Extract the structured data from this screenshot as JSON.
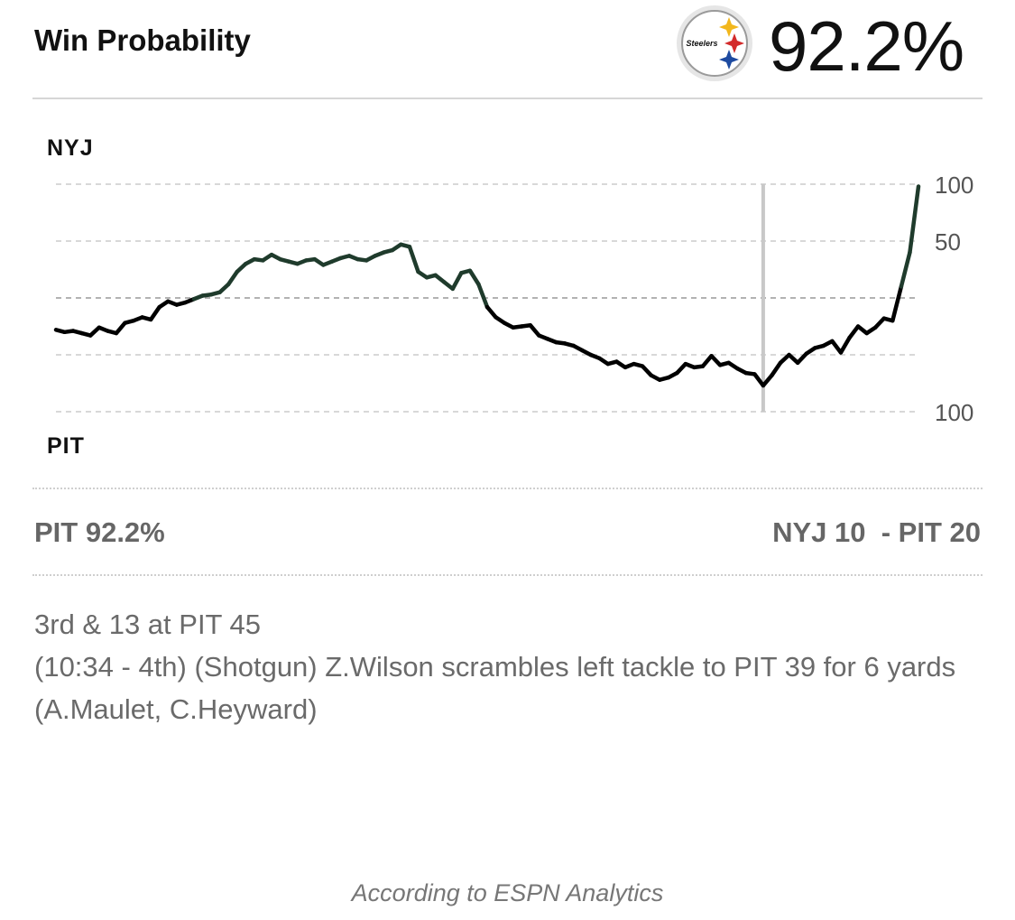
{
  "header": {
    "title": "Win Probability",
    "team_logo_text": "Steelers",
    "win_pct": "92.2%"
  },
  "chart_data": {
    "type": "line",
    "top_team": "NYJ",
    "bottom_team": "PIT",
    "y_axis": {
      "min": -100,
      "max": 100,
      "ticks": [
        100,
        50,
        100
      ],
      "tick_values": [
        100,
        50,
        -100
      ]
    },
    "x_range": [
      0,
      100
    ],
    "current_x": 82,
    "colors": {
      "nyj": "#1f3b2c",
      "pit": "#000000",
      "gridline": "#cccccc",
      "midline": "#999999",
      "marker": "#c8c8c8"
    },
    "x": [
      0,
      1,
      2,
      3,
      4,
      5,
      6,
      7,
      8,
      9,
      10,
      11,
      12,
      13,
      14,
      15,
      16,
      17,
      18,
      19,
      20,
      21,
      22,
      23,
      24,
      25,
      26,
      27,
      28,
      29,
      30,
      31,
      32,
      33,
      34,
      35,
      36,
      37,
      38,
      39,
      40,
      41,
      42,
      43,
      44,
      45,
      46,
      47,
      48,
      49,
      50,
      51,
      52,
      53,
      54,
      55,
      56,
      57,
      58,
      59,
      60,
      61,
      62,
      63,
      64,
      65,
      66,
      67,
      68,
      69,
      70,
      71,
      72,
      73,
      74,
      75,
      76,
      77,
      78,
      79,
      80,
      81,
      82,
      83,
      84,
      85,
      86,
      87,
      88,
      89,
      90,
      91,
      92,
      93,
      94,
      95,
      96,
      97,
      98,
      99,
      100
    ],
    "values": [
      -28,
      -30,
      -29,
      -31,
      -33,
      -26,
      -29,
      -31,
      -22,
      -20,
      -17,
      -19,
      -8,
      -3,
      -6,
      -4,
      -1,
      2,
      3,
      5,
      12,
      23,
      30,
      34,
      33,
      38,
      34,
      32,
      30,
      33,
      34,
      29,
      32,
      35,
      37,
      34,
      33,
      37,
      40,
      42,
      47,
      45,
      23,
      18,
      20,
      14,
      8,
      22,
      24,
      12,
      -8,
      -17,
      -22,
      -26,
      -25,
      -24,
      -33,
      -36,
      -39,
      -40,
      -42,
      -46,
      -50,
      -53,
      -58,
      -56,
      -61,
      -58,
      -60,
      -68,
      -72,
      -70,
      -66,
      -58,
      -61,
      -60,
      -51,
      -59,
      -57,
      -62,
      -66,
      -67,
      -77,
      -68,
      -57,
      -50,
      -57,
      -49,
      -44,
      -42,
      -38,
      -48,
      -35,
      -25,
      -31,
      -26,
      -18,
      -20,
      10,
      40,
      98
    ]
  },
  "summary": {
    "win_text": "PIT 92.2%",
    "score_text": "NYJ 10  - PIT 20"
  },
  "play": {
    "situation": "3rd & 13 at PIT 45",
    "description": "(10:34 - 4th) (Shotgun) Z.Wilson scrambles left tackle to PIT 39 for 6 yards (A.Maulet, C.Heyward)"
  },
  "footer": {
    "attribution": "According to ESPN Analytics"
  }
}
